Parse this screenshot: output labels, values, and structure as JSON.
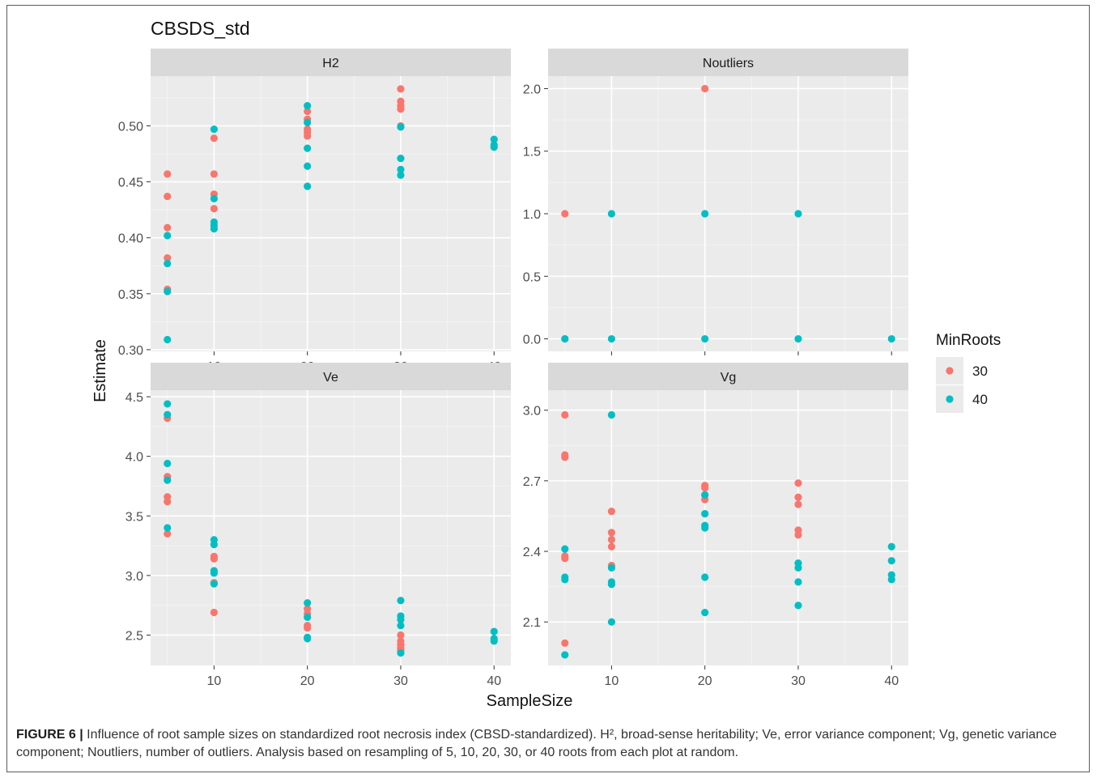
{
  "caption": {
    "label": "FIGURE 6 |",
    "text": "Influence of root sample sizes on standardized root necrosis index (CBSD-standardized). H², broad-sense heritability; Ve, error variance component; Vg, genetic variance component; Noutliers, number of outliers. Analysis based on resampling of 5, 10, 20, 30, or 40 roots from each plot at random."
  },
  "chart_data": {
    "type": "scatter",
    "title": "CBSDS_std",
    "xlabel": "SampleSize",
    "ylabel": "Estimate",
    "legend": {
      "title": "MinRoots",
      "placement": "right",
      "entries": [
        "30",
        "40"
      ]
    },
    "colors": {
      "30": "#f8766d",
      "40": "#00bfc4"
    },
    "panel_background": "#ebebeb",
    "strip_background": "#d9d9d9",
    "grid": true,
    "panels": [
      {
        "name": "H2",
        "xlim": [
          3.2,
          41.8
        ],
        "xticks": [
          10,
          20,
          30,
          40
        ],
        "show_xticks": true,
        "ylim": [
          0.2985,
          0.5445
        ],
        "yticks": [
          0.3,
          0.35,
          0.4,
          0.45,
          0.5
        ],
        "ytick_labels": [
          "0.30",
          "0.35",
          "0.40",
          "0.45",
          "0.50"
        ],
        "series": [
          {
            "name": "30",
            "points": [
              [
                5,
                0.457
              ],
              [
                5,
                0.437
              ],
              [
                5,
                0.409
              ],
              [
                5,
                0.382
              ],
              [
                5,
                0.354
              ],
              [
                10,
                0.489
              ],
              [
                10,
                0.457
              ],
              [
                10,
                0.439
              ],
              [
                10,
                0.426
              ],
              [
                20,
                0.513
              ],
              [
                20,
                0.506
              ],
              [
                20,
                0.497
              ],
              [
                20,
                0.494
              ],
              [
                20,
                0.491
              ],
              [
                30,
                0.533
              ],
              [
                30,
                0.522
              ],
              [
                30,
                0.518
              ],
              [
                30,
                0.515
              ],
              [
                30,
                0.5
              ]
            ]
          },
          {
            "name": "40",
            "points": [
              [
                5,
                0.402
              ],
              [
                5,
                0.377
              ],
              [
                5,
                0.352
              ],
              [
                5,
                0.309
              ],
              [
                10,
                0.497
              ],
              [
                10,
                0.435
              ],
              [
                10,
                0.414
              ],
              [
                10,
                0.411
              ],
              [
                10,
                0.408
              ],
              [
                20,
                0.518
              ],
              [
                20,
                0.503
              ],
              [
                20,
                0.48
              ],
              [
                20,
                0.464
              ],
              [
                20,
                0.446
              ],
              [
                30,
                0.499
              ],
              [
                30,
                0.471
              ],
              [
                30,
                0.461
              ],
              [
                30,
                0.456
              ],
              [
                40,
                0.488
              ],
              [
                40,
                0.483
              ],
              [
                40,
                0.481
              ]
            ]
          }
        ]
      },
      {
        "name": "Noutliers",
        "xlim": [
          3.2,
          41.8
        ],
        "xticks": [
          10,
          20,
          30,
          40
        ],
        "show_xticks": false,
        "ylim": [
          -0.1,
          2.1
        ],
        "yticks": [
          0.0,
          0.5,
          1.0,
          1.5,
          2.0
        ],
        "ytick_labels": [
          "0.0",
          "0.5",
          "1.0",
          "1.5",
          "2.0"
        ],
        "series": [
          {
            "name": "30",
            "points": [
              [
                5,
                1
              ],
              [
                5,
                0
              ],
              [
                20,
                2
              ]
            ]
          },
          {
            "name": "40",
            "points": [
              [
                5,
                0
              ],
              [
                10,
                1
              ],
              [
                10,
                0
              ],
              [
                20,
                1
              ],
              [
                20,
                0
              ],
              [
                30,
                1
              ],
              [
                30,
                0
              ],
              [
                40,
                0
              ]
            ]
          }
        ]
      },
      {
        "name": "Ve",
        "xlim": [
          3.2,
          41.8
        ],
        "xticks": [
          10,
          20,
          30,
          40
        ],
        "show_xticks": true,
        "ylim": [
          2.245,
          4.555
        ],
        "yticks": [
          2.5,
          3.0,
          3.5,
          4.0,
          4.5
        ],
        "ytick_labels": [
          "2.5",
          "3.0",
          "3.5",
          "4.0",
          "4.5"
        ],
        "series": [
          {
            "name": "30",
            "points": [
              [
                5,
                4.32
              ],
              [
                5,
                3.83
              ],
              [
                5,
                3.66
              ],
              [
                5,
                3.62
              ],
              [
                5,
                3.35
              ],
              [
                10,
                3.16
              ],
              [
                10,
                3.14
              ],
              [
                10,
                2.94
              ],
              [
                10,
                2.69
              ],
              [
                20,
                2.72
              ],
              [
                20,
                2.68
              ],
              [
                20,
                2.58
              ],
              [
                20,
                2.56
              ],
              [
                30,
                2.5
              ],
              [
                30,
                2.45
              ],
              [
                30,
                2.42
              ],
              [
                30,
                2.39
              ],
              [
                30,
                2.37
              ]
            ]
          },
          {
            "name": "40",
            "points": [
              [
                5,
                4.44
              ],
              [
                5,
                4.35
              ],
              [
                5,
                3.94
              ],
              [
                5,
                3.8
              ],
              [
                5,
                3.4
              ],
              [
                10,
                3.3
              ],
              [
                10,
                3.26
              ],
              [
                10,
                3.04
              ],
              [
                10,
                3.02
              ],
              [
                10,
                2.93
              ],
              [
                20,
                2.77
              ],
              [
                20,
                2.65
              ],
              [
                20,
                2.48
              ],
              [
                20,
                2.47
              ],
              [
                30,
                2.79
              ],
              [
                30,
                2.66
              ],
              [
                30,
                2.63
              ],
              [
                30,
                2.58
              ],
              [
                30,
                2.35
              ],
              [
                40,
                2.53
              ],
              [
                40,
                2.47
              ],
              [
                40,
                2.45
              ]
            ]
          }
        ]
      },
      {
        "name": "Vg",
        "xlim": [
          3.2,
          41.8
        ],
        "xticks": [
          10,
          20,
          30,
          40
        ],
        "show_xticks": true,
        "ylim": [
          1.915,
          3.085
        ],
        "yticks": [
          2.1,
          2.4,
          2.7,
          3.0
        ],
        "ytick_labels": [
          "2.1",
          "2.4",
          "2.7",
          "3.0"
        ],
        "series": [
          {
            "name": "30",
            "points": [
              [
                5,
                2.98
              ],
              [
                5,
                2.81
              ],
              [
                5,
                2.8
              ],
              [
                5,
                2.38
              ],
              [
                5,
                2.37
              ],
              [
                5,
                2.01
              ],
              [
                10,
                2.57
              ],
              [
                10,
                2.48
              ],
              [
                10,
                2.45
              ],
              [
                10,
                2.42
              ],
              [
                10,
                2.34
              ],
              [
                20,
                2.68
              ],
              [
                20,
                2.67
              ],
              [
                20,
                2.64
              ],
              [
                20,
                2.62
              ],
              [
                30,
                2.69
              ],
              [
                30,
                2.63
              ],
              [
                30,
                2.6
              ],
              [
                30,
                2.49
              ],
              [
                30,
                2.47
              ]
            ]
          },
          {
            "name": "40",
            "points": [
              [
                5,
                2.41
              ],
              [
                5,
                2.29
              ],
              [
                5,
                2.28
              ],
              [
                5,
                1.96
              ],
              [
                10,
                2.98
              ],
              [
                10,
                2.33
              ],
              [
                10,
                2.27
              ],
              [
                10,
                2.26
              ],
              [
                10,
                2.1
              ],
              [
                20,
                2.64
              ],
              [
                20,
                2.56
              ],
              [
                20,
                2.51
              ],
              [
                20,
                2.5
              ],
              [
                20,
                2.29
              ],
              [
                20,
                2.14
              ],
              [
                30,
                2.35
              ],
              [
                30,
                2.33
              ],
              [
                30,
                2.27
              ],
              [
                30,
                2.17
              ],
              [
                40,
                2.42
              ],
              [
                40,
                2.36
              ],
              [
                40,
                2.3
              ],
              [
                40,
                2.28
              ]
            ]
          }
        ]
      }
    ]
  }
}
